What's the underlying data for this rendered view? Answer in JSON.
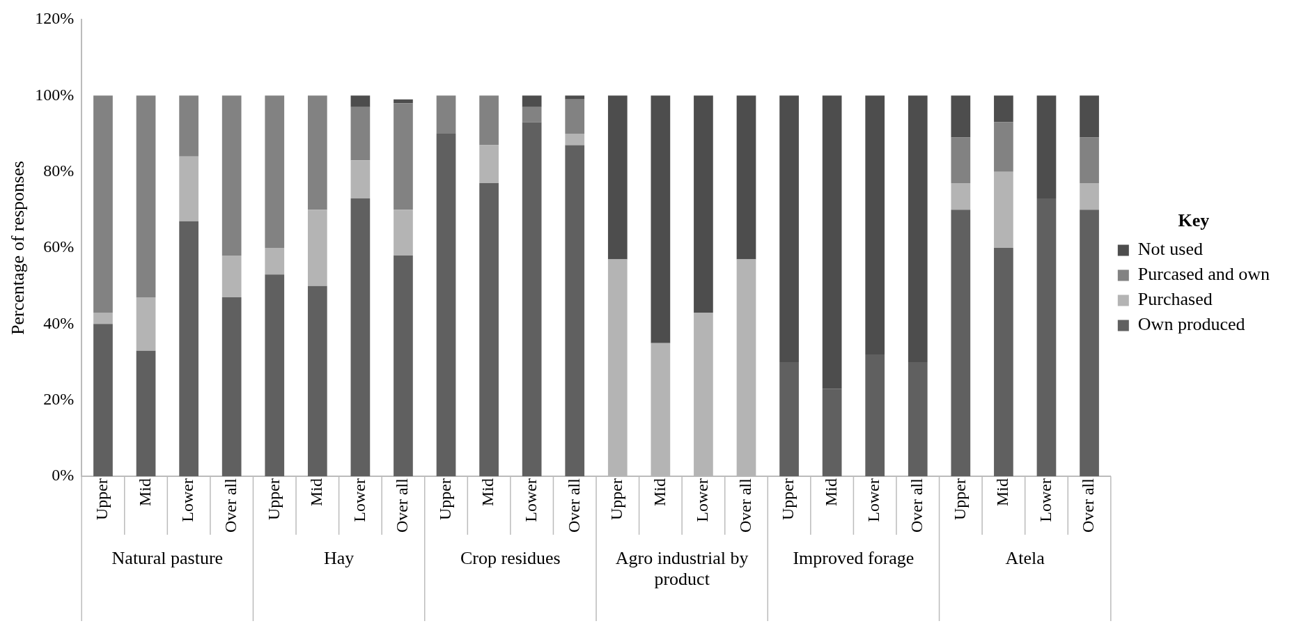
{
  "chart_data": {
    "type": "bar",
    "stacked": true,
    "ylabel": "Percentage of responses",
    "legend_title": "Key",
    "legend": "right",
    "grid": false,
    "categories": [
      "Upper",
      "Mid",
      "Lower",
      "Over all",
      "Upper",
      "Mid",
      "Lower",
      "Over all",
      "Upper",
      "Mid",
      "Lower",
      "Over all",
      "Upper",
      "Mid",
      "Lower",
      "Over all",
      "Upper",
      "Mid",
      "Lower",
      "Over all",
      "Upper",
      "Mid",
      "Lower",
      "Over all"
    ],
    "annotations": [
      "Natural pasture",
      "Hay",
      "Crop residues",
      "Agro industrial by product",
      "Improved forage",
      "Atela"
    ],
    "ylim": [
      0,
      120
    ],
    "yticks": [
      {
        "value": 0,
        "label": "0%"
      },
      {
        "value": 20,
        "label": "20%"
      },
      {
        "value": 40,
        "label": "40%"
      },
      {
        "value": 60,
        "label": "60%"
      },
      {
        "value": 80,
        "label": "80%"
      },
      {
        "value": 100,
        "label": "100%"
      },
      {
        "value": 120,
        "label": "120%"
      }
    ],
    "series": [
      {
        "name": "Own produced",
        "color": "#606060",
        "values": [
          40,
          33,
          67,
          47,
          53,
          50,
          73,
          58,
          90,
          77,
          93,
          87,
          0,
          0,
          0,
          0,
          30,
          23,
          32,
          30,
          70,
          60,
          73,
          70
        ]
      },
      {
        "name": "Purchased",
        "color": "#b4b4b4",
        "values": [
          3,
          14,
          17,
          11,
          7,
          20,
          10,
          12,
          0,
          10,
          0,
          3,
          57,
          35,
          43,
          57,
          0,
          0,
          0,
          0,
          7,
          20,
          0,
          7
        ]
      },
      {
        "name": "Purcased and own",
        "color": "#828282",
        "values": [
          57,
          53,
          16,
          42,
          40,
          30,
          14,
          28,
          10,
          13,
          4,
          9,
          0,
          0,
          0,
          0,
          0,
          0,
          0,
          0,
          12,
          13,
          0,
          12
        ]
      },
      {
        "name": "Not used",
        "color": "#4d4d4d",
        "values": [
          0,
          0,
          0,
          0,
          0,
          0,
          3,
          1,
          0,
          0,
          3,
          1,
          43,
          65,
          57,
          43,
          70,
          77,
          68,
          70,
          11,
          7,
          27,
          11
        ]
      }
    ]
  }
}
